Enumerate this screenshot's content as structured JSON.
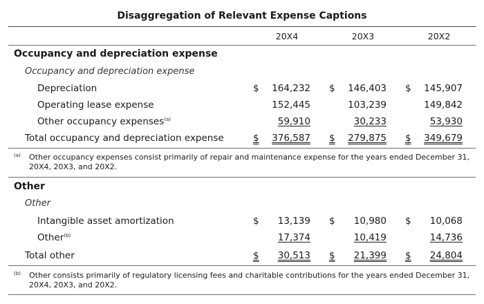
{
  "title": "Disaggregation of Relevant Expense Captions",
  "years": [
    "20X4",
    "20X3",
    "20X2"
  ],
  "currency": "$",
  "sec1": {
    "heading": "Occupancy and depreciation expense",
    "subheading": "Occupancy and depreciation expense",
    "rows": [
      {
        "label": "Depreciation",
        "sup": "",
        "values": [
          "164,232",
          "146,403",
          "145,907"
        ]
      },
      {
        "label": "Operating lease expense",
        "sup": "",
        "values": [
          "152,445",
          "103,239",
          "149,842"
        ]
      },
      {
        "label": "Other occupancy expenses",
        "sup": "(a)",
        "values": [
          "59,910",
          "30,233",
          "53,930"
        ]
      }
    ],
    "total": {
      "label": "Total occupancy and depreciation expense",
      "values": [
        "376,587",
        "279,875",
        "349,679"
      ]
    },
    "note_mark": "(a)",
    "note_text": "Other occupancy expenses consist primarily of repair and maintenance expense for the years ended December 31, 20X4, 20X3, and 20X2."
  },
  "sec2": {
    "heading": "Other",
    "subheading": "Other",
    "rows": [
      {
        "label": "Intangible asset amortization",
        "sup": "",
        "values": [
          "13,139",
          "10,980",
          "10,068"
        ]
      },
      {
        "label": "Other",
        "sup": "(b)",
        "values": [
          "17,374",
          "10,419",
          "14,736"
        ]
      }
    ],
    "total": {
      "label": "Total other",
      "values": [
        "30,513",
        "21,399",
        "24,804"
      ]
    },
    "note_mark": "(b)",
    "note_text": "Other consists primarily of regulatory licensing fees and charitable contributions for the years ended December 31, 20X4, 20X3, and 20X2."
  }
}
